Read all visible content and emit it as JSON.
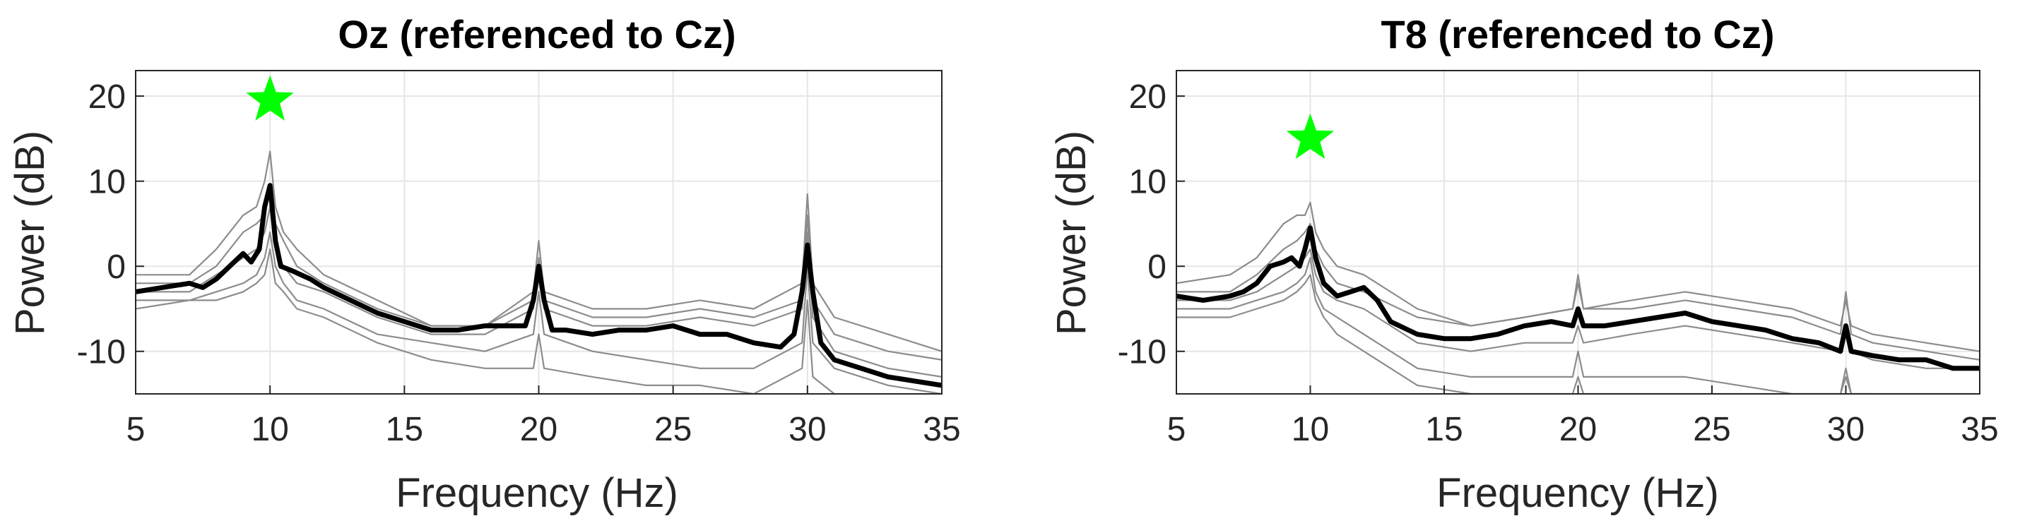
{
  "chart_data": [
    {
      "type": "line",
      "title": "Oz (referenced to Cz)",
      "xlabel": "Frequency (Hz)",
      "ylabel": "Power (dB)",
      "xlim": [
        5,
        35
      ],
      "ylim": [
        -15,
        23
      ],
      "xticks": [
        5,
        10,
        15,
        20,
        25,
        30,
        35
      ],
      "yticks": [
        20,
        10,
        0,
        -10
      ],
      "grid": true,
      "marker": {
        "type": "star",
        "x": 10,
        "y": 19.5,
        "color": "#00ff00"
      },
      "series": [
        {
          "role": "mean",
          "color": "#000000",
          "x": [
            5,
            6,
            7,
            7.5,
            8,
            8.5,
            9,
            9.3,
            9.6,
            9.8,
            10,
            10.2,
            10.4,
            10.8,
            11.5,
            12,
            13,
            14,
            15,
            16,
            17,
            18,
            19,
            19.5,
            19.8,
            20,
            20.2,
            20.5,
            21,
            22,
            23,
            24,
            25,
            26,
            27,
            28,
            29,
            29.5,
            29.8,
            30,
            30.2,
            30.5,
            31,
            32,
            33,
            34,
            35
          ],
          "y": [
            -3,
            -2.5,
            -2,
            -2.5,
            -1.5,
            0,
            1.5,
            0.5,
            2,
            7,
            9.5,
            3,
            0,
            -0.5,
            -1.5,
            -2.5,
            -4,
            -5.5,
            -6.5,
            -7.5,
            -7.5,
            -7,
            -7,
            -7,
            -4,
            0,
            -4,
            -7.5,
            -7.5,
            -8,
            -7.5,
            -7.5,
            -7,
            -8,
            -8,
            -9,
            -9.5,
            -8,
            -3,
            2.5,
            -3,
            -9,
            -11,
            -12,
            -13,
            -13.5,
            -14
          ]
        },
        {
          "role": "individual",
          "color": "#8c8c8c",
          "x": [
            5,
            7,
            8,
            9,
            9.5,
            9.8,
            10,
            10.2,
            10.5,
            11,
            12,
            14,
            16,
            18,
            19.8,
            20,
            20.2,
            22,
            24,
            26,
            28,
            29.8,
            30,
            30.2,
            31,
            33,
            35
          ],
          "y": [
            -1,
            -1,
            2,
            6,
            7,
            10,
            13.5,
            7,
            4,
            2,
            -1,
            -4,
            -7,
            -7,
            -3,
            3,
            -3,
            -5,
            -5,
            -4,
            -5,
            -2,
            8.5,
            -2,
            -6,
            -8,
            -10
          ]
        },
        {
          "role": "individual",
          "color": "#8c8c8c",
          "x": [
            5,
            7,
            8,
            9,
            9.5,
            9.8,
            10,
            10.2,
            10.5,
            11,
            12,
            14,
            16,
            18,
            19.8,
            20,
            20.2,
            22,
            24,
            26,
            28,
            29.8,
            30,
            30.2,
            31,
            33,
            35
          ],
          "y": [
            -2,
            -2,
            0,
            4,
            5,
            6,
            9,
            5,
            3,
            0,
            -2,
            -5,
            -7,
            -7,
            -4,
            1,
            -4,
            -6,
            -6,
            -5,
            -6,
            -4,
            6,
            -4,
            -8,
            -10,
            -11
          ]
        },
        {
          "role": "individual",
          "color": "#8c8c8c",
          "x": [
            5,
            7,
            8,
            9,
            9.5,
            9.8,
            10,
            10.2,
            10.5,
            11,
            12,
            14,
            16,
            18,
            19.8,
            20,
            20.2,
            22,
            24,
            26,
            28,
            29.8,
            30,
            30.2,
            31,
            33,
            35
          ],
          "y": [
            -3,
            -3,
            -1,
            1,
            2,
            4,
            7,
            2,
            0,
            -2,
            -3,
            -6,
            -8,
            -8,
            -5,
            0,
            -5,
            -7,
            -7,
            -6,
            -7,
            -5,
            4,
            -6,
            -10,
            -12,
            -13
          ]
        },
        {
          "role": "individual",
          "color": "#8c8c8c",
          "x": [
            5,
            7,
            8,
            9,
            9.5,
            9.8,
            10,
            10.2,
            10.5,
            11,
            12,
            14,
            16,
            18,
            19.8,
            20,
            20.2,
            22,
            24,
            26,
            28,
            29.8,
            30,
            30.2,
            31,
            33,
            35
          ],
          "y": [
            -4,
            -4,
            -3,
            -2,
            -1,
            1,
            4,
            0,
            -2,
            -4,
            -5,
            -8,
            -9,
            -10,
            -8,
            -3,
            -8,
            -10,
            -11,
            -12,
            -12,
            -9,
            0,
            -9,
            -12,
            -14,
            -15
          ]
        },
        {
          "role": "individual",
          "color": "#8c8c8c",
          "x": [
            5,
            7,
            8,
            9,
            9.5,
            9.8,
            10,
            10.2,
            10.5,
            11,
            12,
            14,
            16,
            18,
            19.8,
            20,
            20.2,
            22,
            24,
            26,
            28,
            29.8,
            30,
            30.2,
            31,
            33,
            35
          ],
          "y": [
            -5,
            -4,
            -4,
            -3,
            -2,
            -1,
            2,
            -2,
            -3,
            -5,
            -6,
            -9,
            -11,
            -12,
            -12,
            -8,
            -12,
            -13,
            -14,
            -14,
            -15,
            -12,
            -4,
            -13,
            -15,
            -16,
            -16
          ]
        }
      ]
    },
    {
      "type": "line",
      "title": "T8 (referenced to Cz)",
      "xlabel": "Frequency (Hz)",
      "ylabel": "Power (dB)",
      "xlim": [
        5,
        35
      ],
      "ylim": [
        -15,
        23
      ],
      "xticks": [
        5,
        10,
        15,
        20,
        25,
        30,
        35
      ],
      "yticks": [
        20,
        10,
        0,
        -10
      ],
      "grid": true,
      "marker": {
        "type": "star",
        "x": 10,
        "y": 15,
        "color": "#00ff00"
      },
      "series": [
        {
          "role": "mean",
          "color": "#000000",
          "x": [
            5,
            6,
            7,
            7.5,
            8,
            8.5,
            9,
            9.3,
            9.6,
            9.8,
            10,
            10.2,
            10.5,
            11,
            11.5,
            12,
            12.5,
            13,
            14,
            15,
            16,
            17,
            18,
            19,
            19.8,
            20,
            20.2,
            21,
            22,
            23,
            24,
            25,
            26,
            27,
            28,
            29,
            29.8,
            30,
            30.2,
            31,
            32,
            33,
            34,
            35
          ],
          "y": [
            -3.5,
            -4,
            -3.5,
            -3,
            -2,
            0,
            0.5,
            1,
            0,
            2,
            4.5,
            1,
            -2,
            -3.5,
            -3,
            -2.5,
            -4,
            -6.5,
            -8,
            -8.5,
            -8.5,
            -8,
            -7,
            -6.5,
            -7,
            -5,
            -7,
            -7,
            -6.5,
            -6,
            -5.5,
            -6.5,
            -7,
            -7.5,
            -8.5,
            -9,
            -10,
            -7,
            -10,
            -10.5,
            -11,
            -11,
            -12,
            -12
          ]
        },
        {
          "role": "individual",
          "color": "#8c8c8c",
          "x": [
            5,
            7,
            8,
            9,
            9.5,
            9.8,
            10,
            10.2,
            10.5,
            11,
            12,
            14,
            16,
            18,
            19.8,
            20,
            20.2,
            22,
            24,
            26,
            28,
            29.8,
            30,
            30.2,
            31,
            33,
            35
          ],
          "y": [
            -2,
            -1,
            1,
            5,
            6,
            6,
            7.5,
            4,
            2,
            0,
            -1,
            -5,
            -7,
            -6,
            -5,
            -1,
            -5,
            -4,
            -3,
            -4,
            -5,
            -7,
            -4,
            -7,
            -8,
            -9,
            -10
          ]
        },
        {
          "role": "individual",
          "color": "#8c8c8c",
          "x": [
            5,
            7,
            8,
            9,
            9.5,
            9.8,
            10,
            10.2,
            10.5,
            11,
            12,
            14,
            16,
            18,
            19.8,
            20,
            20.2,
            22,
            24,
            26,
            28,
            29.8,
            30,
            30.2,
            31,
            33,
            35
          ],
          "y": [
            -3,
            -3,
            -1,
            2,
            3,
            4,
            5,
            2,
            0,
            -2,
            -3,
            -6,
            -7,
            -6,
            -5,
            -2,
            -5,
            -5,
            -4,
            -5,
            -6,
            -8,
            -3,
            -8,
            -9,
            -10,
            -11
          ]
        },
        {
          "role": "individual",
          "color": "#8c8c8c",
          "x": [
            5,
            7,
            8,
            9,
            9.5,
            9.8,
            10,
            10.2,
            10.5,
            11,
            12,
            14,
            16,
            18,
            19.8,
            20,
            20.2,
            22,
            24,
            26,
            28,
            29.8,
            30,
            30.2,
            31,
            33,
            35
          ],
          "y": [
            -4,
            -4,
            -3,
            -1,
            0,
            1,
            2,
            -1,
            -3,
            -4,
            -5,
            -9,
            -10,
            -9,
            -9,
            -7,
            -9,
            -8,
            -7,
            -8,
            -9,
            -10,
            -8,
            -10,
            -11,
            -12,
            -12
          ]
        },
        {
          "role": "individual",
          "color": "#8c8c8c",
          "x": [
            5,
            7,
            8,
            9,
            9.5,
            9.8,
            10,
            10.2,
            10.5,
            11,
            12,
            14,
            16,
            18,
            19.8,
            20,
            20.2,
            22,
            24,
            26,
            28,
            29.8,
            30,
            30.2,
            31,
            33,
            35
          ],
          "y": [
            -5,
            -5,
            -4,
            -3,
            -2,
            -1,
            1,
            -3,
            -5,
            -6,
            -8,
            -12,
            -13,
            -13,
            -13,
            -10,
            -13,
            -13,
            -13,
            -14,
            -15,
            -15,
            -12,
            -15,
            -15,
            -16,
            -16
          ]
        },
        {
          "role": "individual",
          "color": "#8c8c8c",
          "x": [
            5,
            7,
            8,
            9,
            9.5,
            9.8,
            10,
            10.2,
            10.5,
            11,
            12,
            14,
            16,
            18,
            19.8,
            20,
            20.2,
            22,
            24,
            26,
            28,
            29.8,
            30,
            30.2,
            31,
            33,
            35
          ],
          "y": [
            -6,
            -6,
            -5,
            -4,
            -3,
            -2,
            -1,
            -4,
            -6,
            -8,
            -10,
            -14,
            -15,
            -15,
            -15,
            -13,
            -15,
            -15,
            -15,
            -15,
            -15,
            -15,
            -13,
            -15,
            -15,
            -15,
            -15
          ]
        }
      ]
    }
  ]
}
